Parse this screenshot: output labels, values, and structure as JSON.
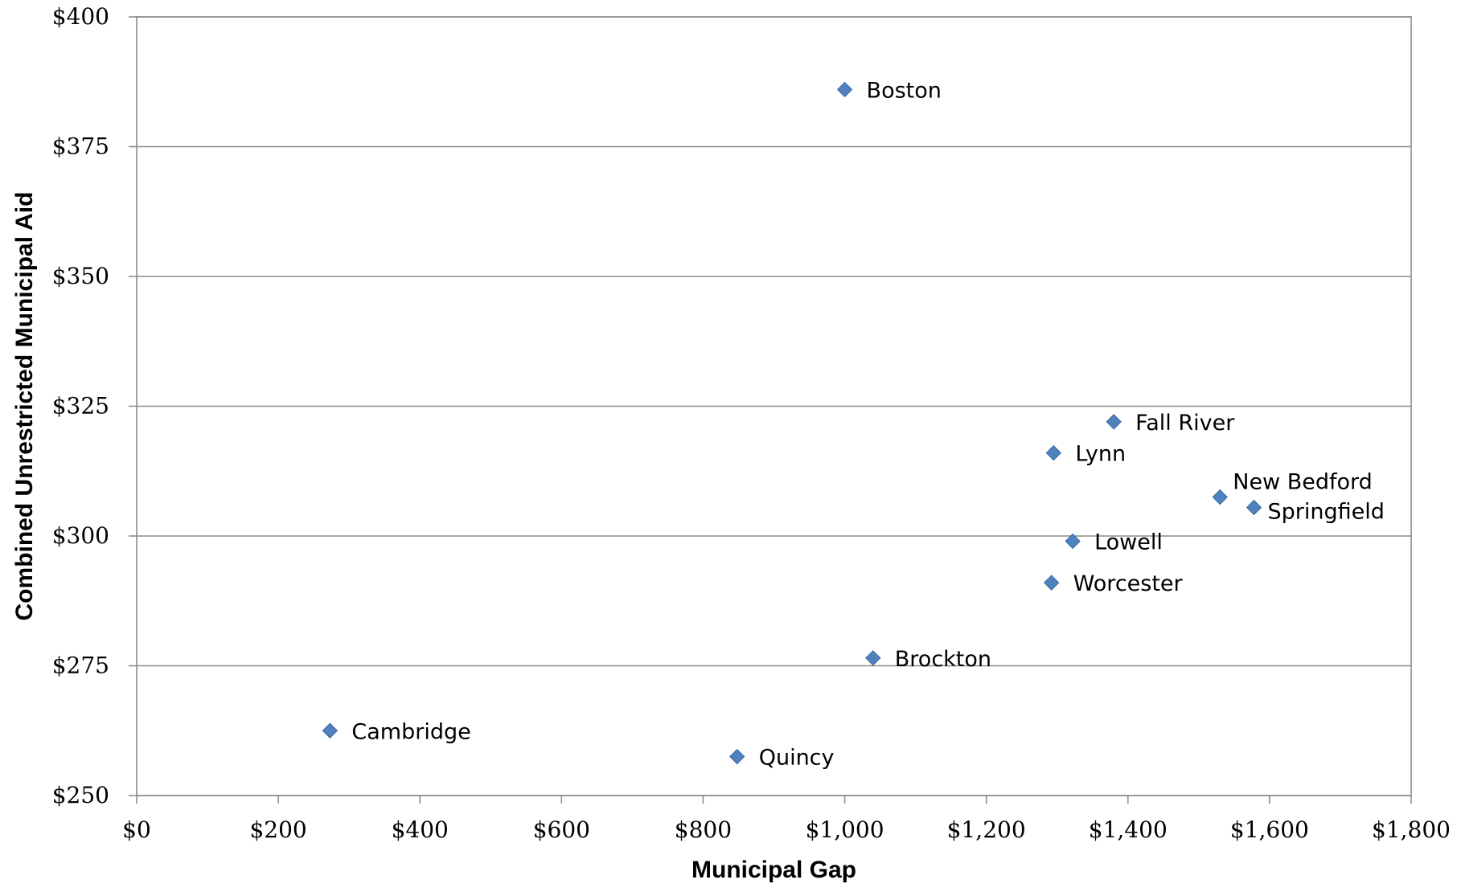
{
  "chart_data": {
    "type": "scatter",
    "title": "",
    "xlabel": "Municipal Gap",
    "ylabel": "Combined Unrestricted Municipal Aid",
    "xlim": [
      0,
      1800
    ],
    "ylim": [
      250,
      400
    ],
    "x_ticks": [
      "$0",
      "$200",
      "$400",
      "$600",
      "$800",
      "$1,000",
      "$1,200",
      "$1,400",
      "$1,600",
      "$1,800"
    ],
    "y_ticks": [
      "$250",
      "$275",
      "$300",
      "$325",
      "$350",
      "$375",
      "$400"
    ],
    "grid": "horizontal",
    "marker": "diamond",
    "color": "#4f81bd",
    "points": [
      {
        "label": "Boston",
        "x": 1000,
        "y": 386
      },
      {
        "label": "Fall River",
        "x": 1380,
        "y": 322
      },
      {
        "label": "Lynn",
        "x": 1295,
        "y": 316
      },
      {
        "label": "New Bedford",
        "x": 1530,
        "y": 307.5
      },
      {
        "label": "Springfield",
        "x": 1578,
        "y": 305.5
      },
      {
        "label": "Lowell",
        "x": 1322,
        "y": 299
      },
      {
        "label": "Worcester",
        "x": 1292,
        "y": 291
      },
      {
        "label": "Brockton",
        "x": 1040,
        "y": 276.5
      },
      {
        "label": "Cambridge",
        "x": 273,
        "y": 262.5
      },
      {
        "label": "Quincy",
        "x": 848,
        "y": 257.5
      }
    ]
  }
}
